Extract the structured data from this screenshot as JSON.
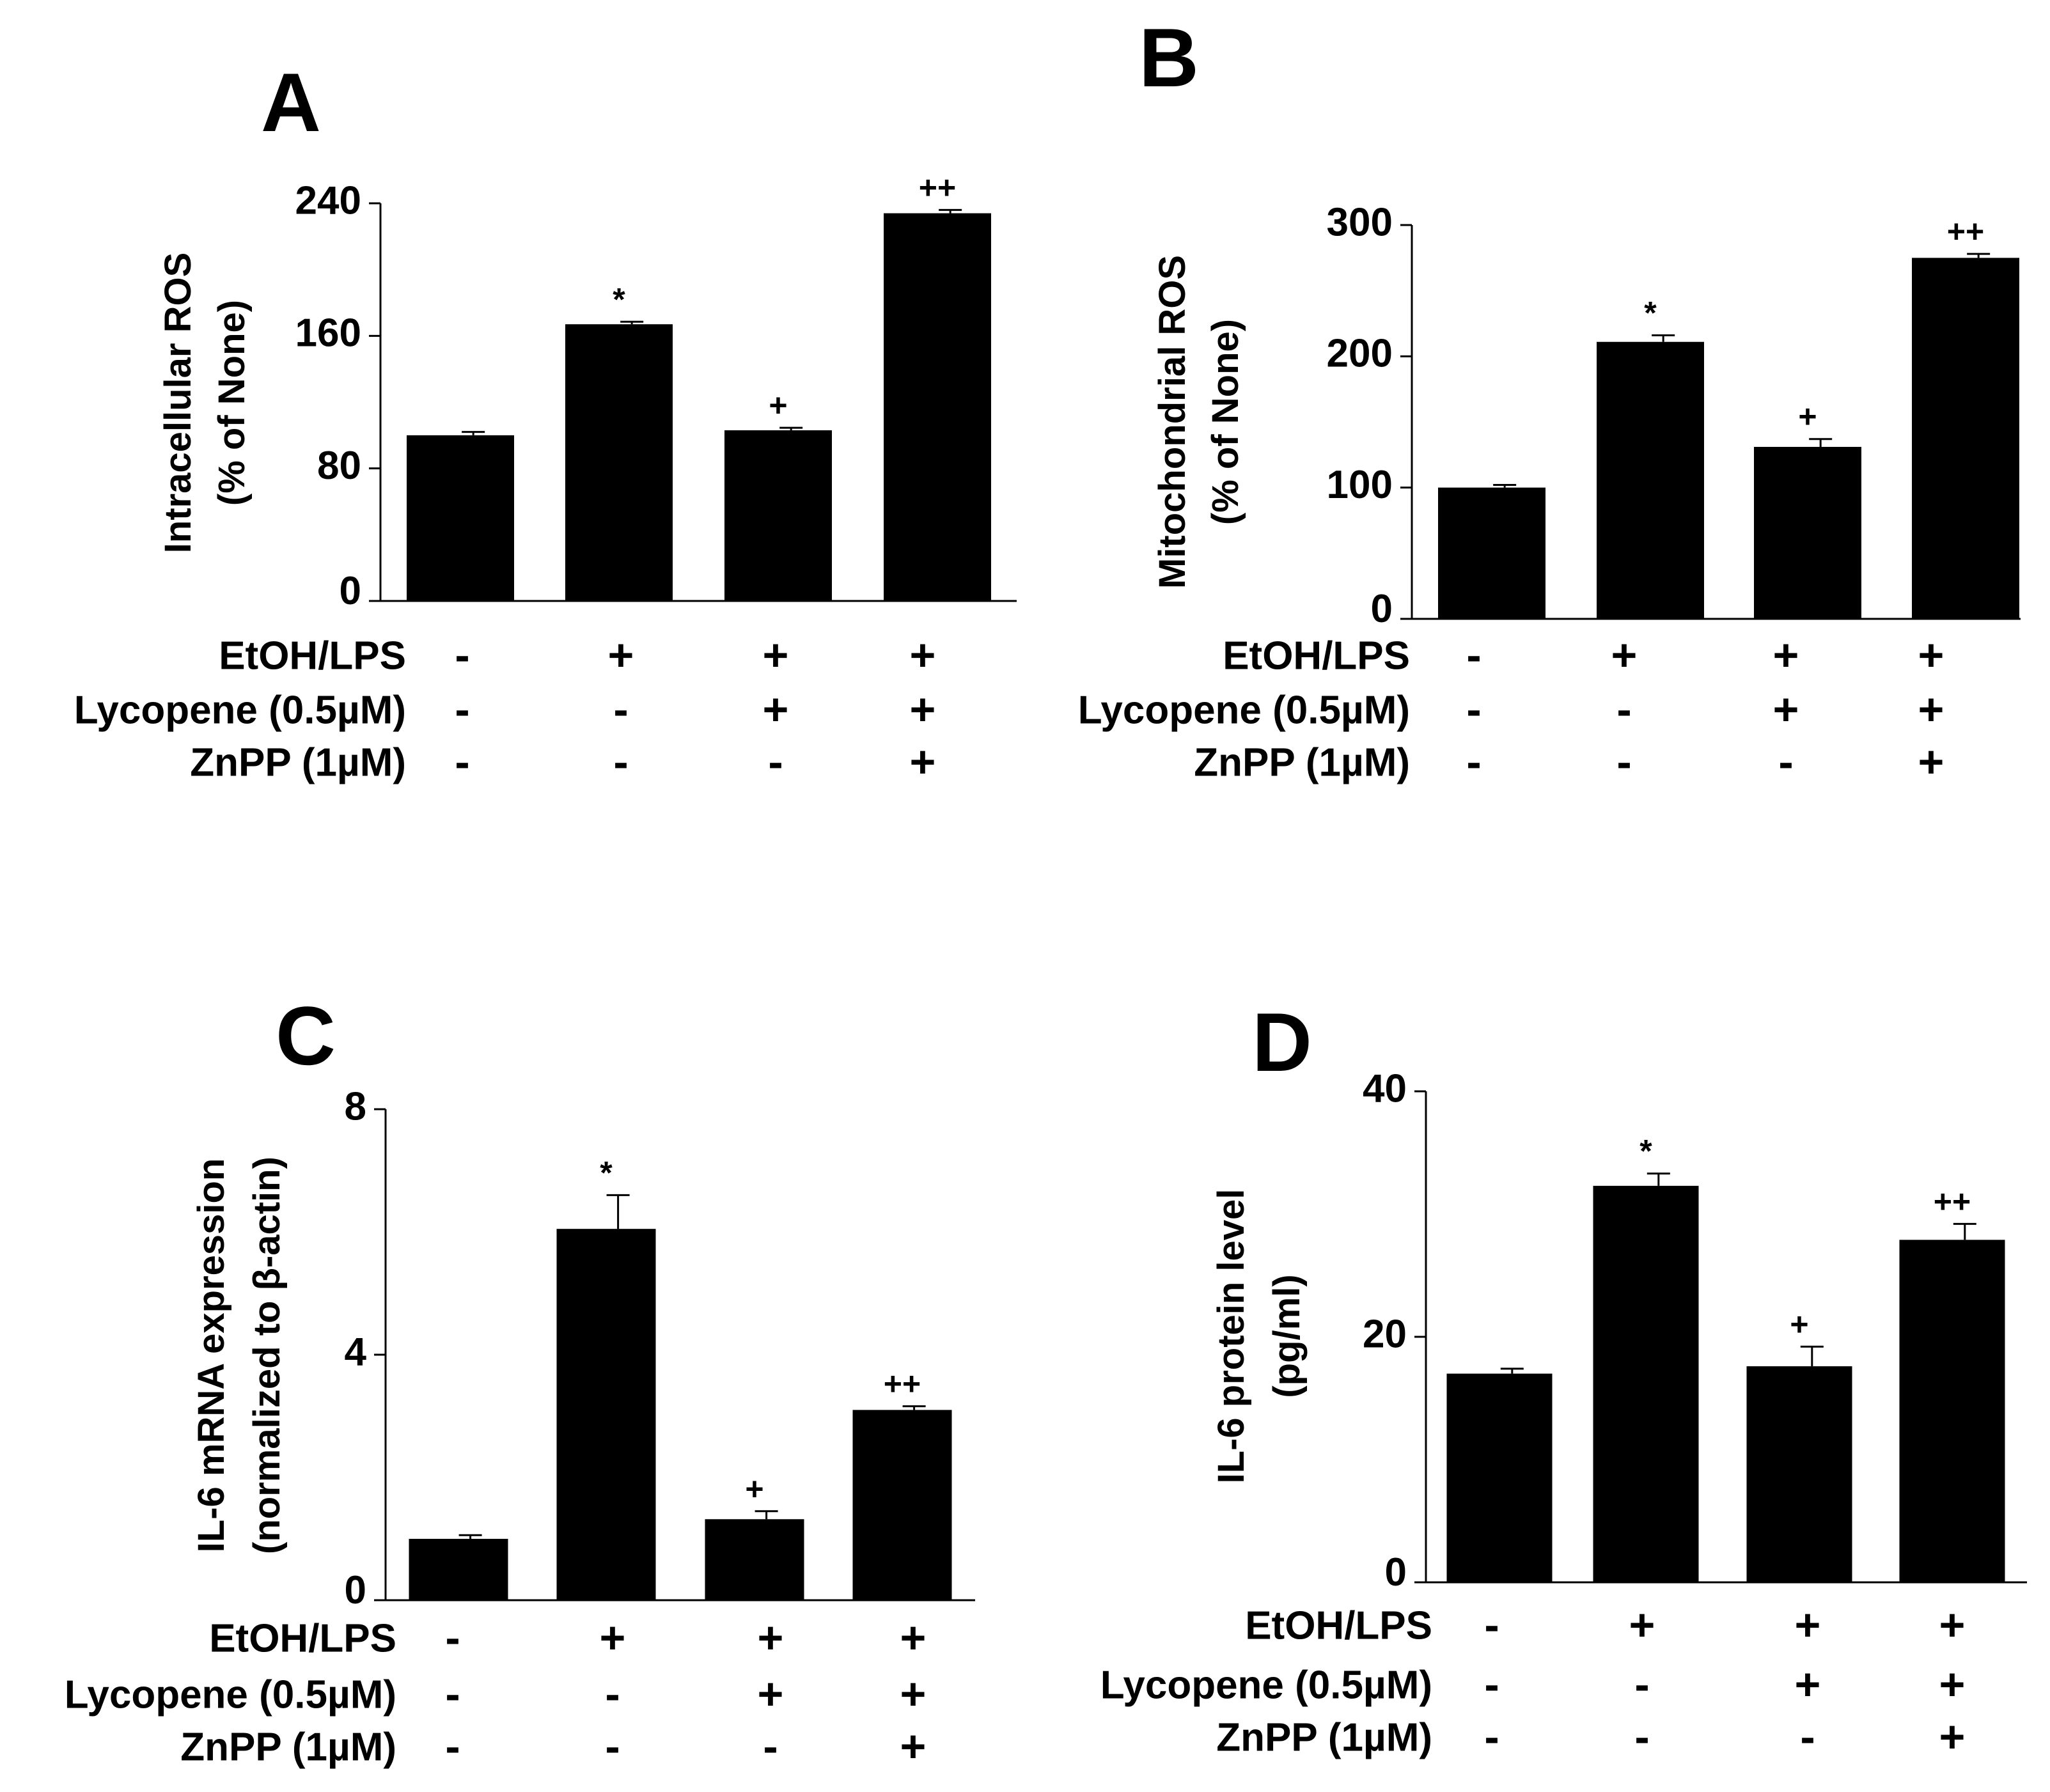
{
  "chart_data": [
    {
      "type": "bar",
      "panel": "A",
      "ylabel_lines": [
        "Intracellular ROS",
        "(% of None)"
      ],
      "ylim": [
        0,
        240
      ],
      "yticks": [
        0,
        80,
        160,
        240
      ],
      "values": [
        100,
        167,
        103,
        234
      ],
      "errors": [
        2,
        1.5,
        1.5,
        2
      ],
      "significance": [
        "",
        "*",
        "+",
        "++"
      ],
      "treatments": [
        {
          "label": "EtOH/LPS",
          "signs": [
            "-",
            "+",
            "+",
            "+"
          ]
        },
        {
          "label": "Lycopene (0.5µM)",
          "signs": [
            "-",
            "-",
            "+",
            "+"
          ]
        },
        {
          "label": "ZnPP (1µM)",
          "signs": [
            "-",
            "-",
            "-",
            "+"
          ]
        }
      ]
    },
    {
      "type": "bar",
      "panel": "B",
      "ylabel_lines": [
        "Mitochondrial ROS",
        "(% of None)"
      ],
      "ylim": [
        0,
        300
      ],
      "yticks": [
        0,
        100,
        200,
        300
      ],
      "values": [
        100,
        211,
        131,
        275
      ],
      "errors": [
        2,
        5,
        6,
        3
      ],
      "significance": [
        "",
        "*",
        "+",
        "++"
      ],
      "treatments": [
        {
          "label": "EtOH/LPS",
          "signs": [
            "-",
            "+",
            "+",
            "+"
          ]
        },
        {
          "label": "Lycopene (0.5µM)",
          "signs": [
            "-",
            "-",
            "+",
            "+"
          ]
        },
        {
          "label": "ZnPP (1µM)",
          "signs": [
            "-",
            "-",
            "-",
            "+"
          ]
        }
      ]
    },
    {
      "type": "bar",
      "panel": "C",
      "ylabel_lines": [
        "IL-6 mRNA expression",
        "(normalized to β-actin)"
      ],
      "ylim": [
        0,
        8
      ],
      "yticks": [
        0,
        4,
        8
      ],
      "values": [
        1.0,
        6.05,
        1.32,
        3.1
      ],
      "errors": [
        0.06,
        0.55,
        0.13,
        0.06
      ],
      "significance": [
        "",
        "*",
        "+",
        "++"
      ],
      "treatments": [
        {
          "label": "EtOH/LPS",
          "signs": [
            "-",
            "+",
            "+",
            "+"
          ]
        },
        {
          "label": "Lycopene (0.5µM)",
          "signs": [
            "-",
            "-",
            "+",
            "+"
          ]
        },
        {
          "label": "ZnPP (1µM)",
          "signs": [
            "-",
            "-",
            "-",
            "+"
          ]
        }
      ]
    },
    {
      "type": "bar",
      "panel": "D",
      "ylabel_lines": [
        "IL-6 protein level",
        "(pg/ml)"
      ],
      "ylim": [
        0,
        40
      ],
      "yticks": [
        0,
        20,
        40
      ],
      "values": [
        17.0,
        32.3,
        17.6,
        27.9
      ],
      "errors": [
        0.4,
        1.0,
        1.6,
        1.3
      ],
      "significance": [
        "",
        "*",
        "+",
        "++"
      ],
      "treatments": [
        {
          "label": "EtOH/LPS",
          "signs": [
            "-",
            "+",
            "+",
            "+"
          ]
        },
        {
          "label": "Lycopene (0.5µM)",
          "signs": [
            "-",
            "-",
            "+",
            "+"
          ]
        },
        {
          "label": "ZnPP (1µM)",
          "signs": [
            "-",
            "-",
            "-",
            "+"
          ]
        }
      ]
    }
  ]
}
